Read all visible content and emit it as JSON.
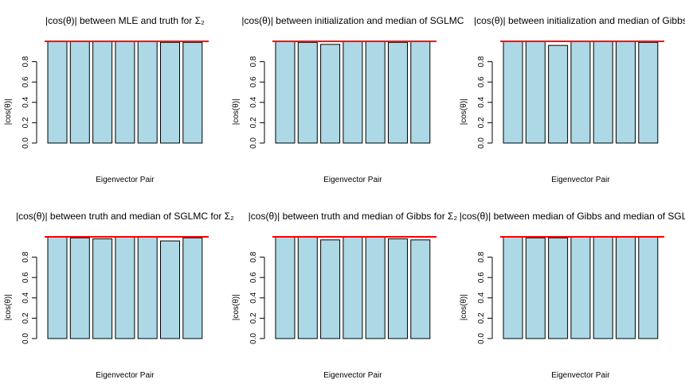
{
  "colors": {
    "bar_fill": "#add8e6",
    "bar_stroke": "#000000",
    "ref_line": "#ff0000"
  },
  "chart_data": [
    {
      "type": "bar",
      "title": "|cos(θ)| between MLE and truth for Σ₂",
      "xlabel": "Eigenvector Pair",
      "ylabel": "|cos(θ)|",
      "ylim": [
        0,
        1
      ],
      "yticks": [
        "0.0",
        "0.2",
        "0.4",
        "0.6",
        "0.8"
      ],
      "reference_line": 1.0,
      "values": [
        1.0,
        1.0,
        1.0,
        1.0,
        1.0,
        0.99,
        0.99
      ]
    },
    {
      "type": "bar",
      "title": "|cos(θ)| between initialization and median of SGLMC",
      "xlabel": "Eigenvector Pair",
      "ylabel": "|cos(θ)|",
      "ylim": [
        0,
        1
      ],
      "yticks": [
        "0.0",
        "0.2",
        "0.4",
        "0.6",
        "0.8"
      ],
      "reference_line": 1.0,
      "values": [
        1.0,
        0.99,
        0.97,
        1.0,
        1.0,
        0.99,
        1.0
      ]
    },
    {
      "type": "bar",
      "title": "|cos(θ)| between initialization and median of Gibbs",
      "xlabel": "Eigenvector Pair",
      "ylabel": "|cos(θ)|",
      "ylim": [
        0,
        1
      ],
      "yticks": [
        "0.0",
        "0.2",
        "0.4",
        "0.6",
        "0.8"
      ],
      "reference_line": 1.0,
      "values": [
        1.0,
        1.0,
        0.96,
        1.0,
        1.0,
        1.0,
        0.99
      ]
    },
    {
      "type": "bar",
      "title": "|cos(θ)| between truth and median of SGLMC for Σ₂",
      "xlabel": "Eigenvector Pair",
      "ylabel": "|cos(θ)|",
      "ylim": [
        0,
        1
      ],
      "yticks": [
        "0.0",
        "0.2",
        "0.4",
        "0.6",
        "0.8"
      ],
      "reference_line": 1.0,
      "values": [
        1.0,
        0.99,
        0.98,
        1.0,
        1.0,
        0.96,
        0.99
      ]
    },
    {
      "type": "bar",
      "title": "|cos(θ)| between truth and median of Gibbs for Σ₂",
      "xlabel": "Eigenvector Pair",
      "ylabel": "|cos(θ)|",
      "ylim": [
        0,
        1
      ],
      "yticks": [
        "0.0",
        "0.2",
        "0.4",
        "0.6",
        "0.8"
      ],
      "reference_line": 1.0,
      "values": [
        1.0,
        1.0,
        0.97,
        1.0,
        1.0,
        0.98,
        0.97
      ]
    },
    {
      "type": "bar",
      "title": "|cos(θ)| between median of Gibbs and median of SGLMC",
      "xlabel": "Eigenvector Pair",
      "ylabel": "|cos(θ)|",
      "ylim": [
        0,
        1
      ],
      "yticks": [
        "0.0",
        "0.2",
        "0.4",
        "0.6",
        "0.8"
      ],
      "reference_line": 1.0,
      "values": [
        1.0,
        0.99,
        0.99,
        1.0,
        1.0,
        1.0,
        1.0
      ]
    }
  ]
}
